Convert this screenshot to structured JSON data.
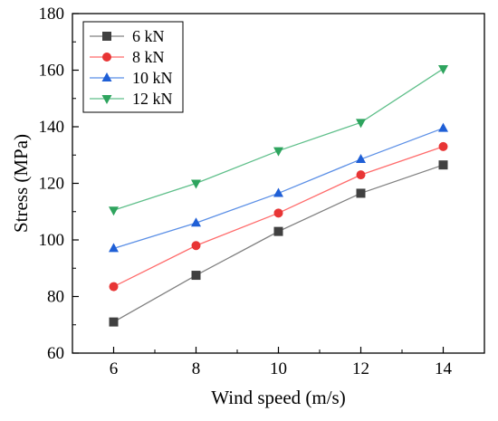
{
  "chart_data": {
    "type": "line",
    "title": "",
    "xlabel": "Wind speed (m/s)",
    "ylabel": "Stress (MPa)",
    "x": [
      6,
      8,
      10,
      12,
      14
    ],
    "xlim": [
      5,
      15
    ],
    "ylim": [
      60,
      180
    ],
    "xticks": [
      6,
      8,
      10,
      12,
      14
    ],
    "yticks": [
      60,
      80,
      100,
      120,
      140,
      160,
      180
    ],
    "grid": false,
    "legend_position": "top-left",
    "series": [
      {
        "name": "6 kN",
        "values": [
          71,
          87.5,
          103,
          116.5,
          126.5
        ],
        "color": "#808080",
        "marker_color": "#404040",
        "marker": "square"
      },
      {
        "name": "8 kN",
        "values": [
          83.5,
          98,
          109.5,
          123,
          133
        ],
        "color": "#ff6b6b",
        "marker_color": "#e83535",
        "marker": "circle"
      },
      {
        "name": "10 kN",
        "values": [
          97,
          106,
          116.5,
          128.5,
          139.5
        ],
        "color": "#5b8fe6",
        "marker_color": "#1f5fd6",
        "marker": "triangle-up"
      },
      {
        "name": "12 kN",
        "values": [
          110.5,
          120,
          131.5,
          141.5,
          160.5
        ],
        "color": "#5fbf8a",
        "marker_color": "#2ea45e",
        "marker": "triangle-down"
      }
    ]
  }
}
